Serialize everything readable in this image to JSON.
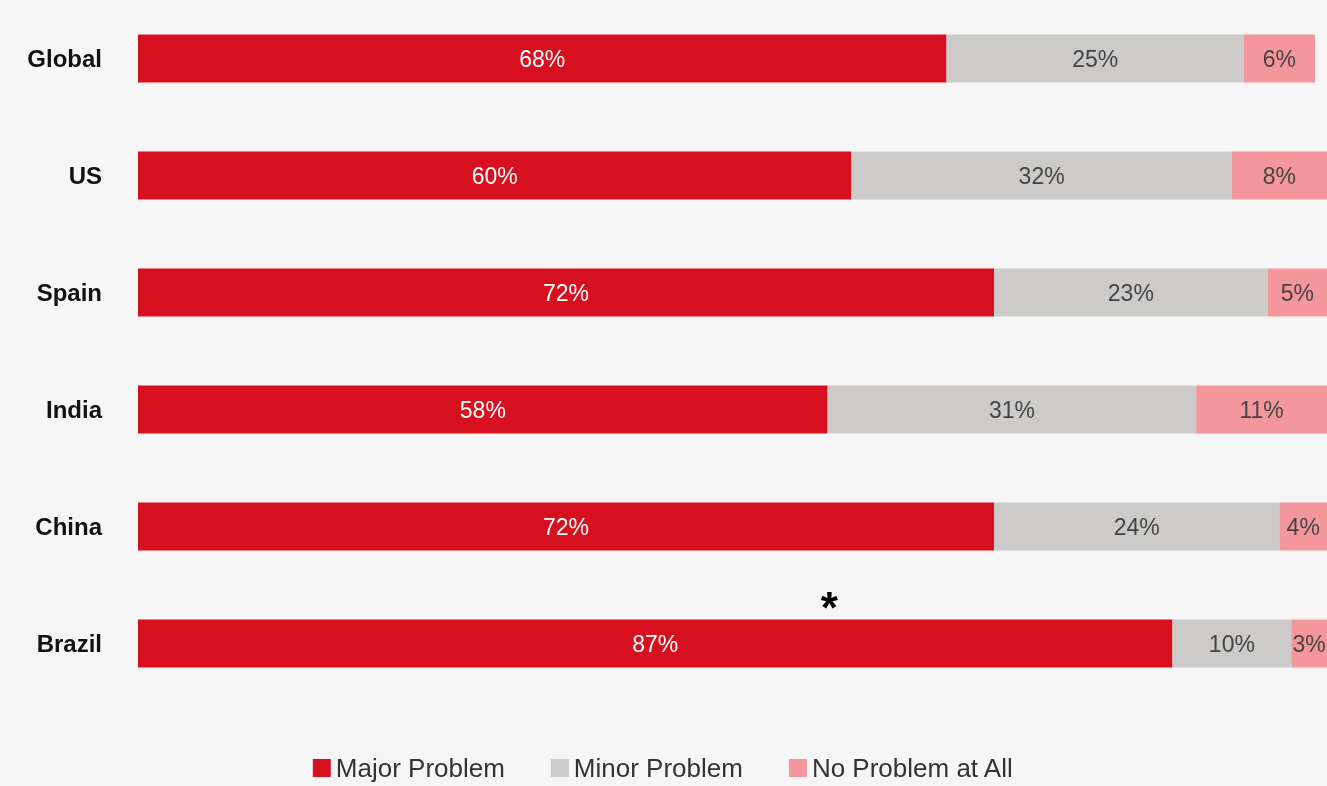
{
  "chart_data": {
    "type": "bar",
    "orientation": "horizontal",
    "stacked": true,
    "legend": "bottom",
    "categories": [
      "Global",
      "US",
      "Spain",
      "India",
      "China",
      "Brazil"
    ],
    "series": [
      {
        "name": "Major Problem",
        "color": "#d7101f",
        "values": [
          68,
          60,
          72,
          58,
          72,
          87
        ],
        "value_labels": [
          "68%",
          "60%",
          "72%",
          "58%",
          "72%",
          "87%"
        ]
      },
      {
        "name": "Minor Problem",
        "color": "#cccbc9",
        "values": [
          25,
          32,
          23,
          31,
          24,
          10
        ],
        "value_labels": [
          "25%",
          "32%",
          "23%",
          "31%",
          "24%",
          "10%"
        ]
      },
      {
        "name": "No Problem at All",
        "color": "#f4979d",
        "values": [
          6,
          8,
          5,
          11,
          4,
          3
        ],
        "value_labels": [
          "6%",
          "8%",
          "5%",
          "11%",
          "4%",
          "3%"
        ]
      }
    ],
    "annotations": [
      "*"
    ]
  }
}
